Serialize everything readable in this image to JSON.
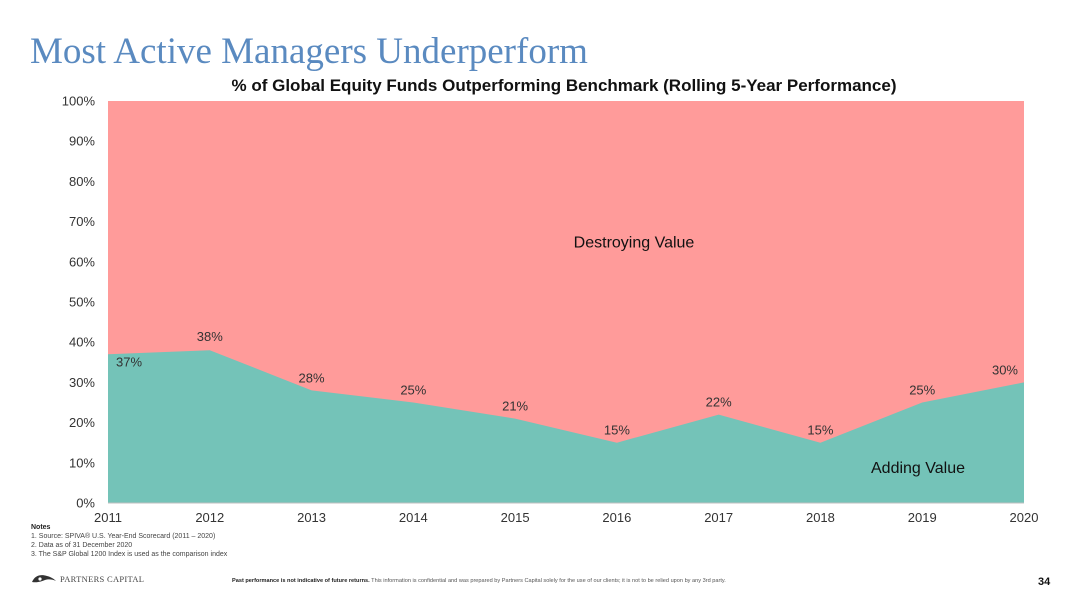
{
  "slide": {
    "title": "Most Active Managers Underperform",
    "page_number": "34"
  },
  "chart_data": {
    "type": "area",
    "title": "% of Global Equity Funds Outperforming Benchmark (Rolling 5-Year Performance)",
    "x": [
      "2011",
      "2012",
      "2013",
      "2014",
      "2015",
      "2016",
      "2017",
      "2018",
      "2019",
      "2020"
    ],
    "series": [
      {
        "values": [
          37,
          38,
          28,
          25,
          21,
          15,
          22,
          15,
          25,
          30
        ],
        "data_labels": [
          "37%",
          "38%",
          "28%",
          "25%",
          "21%",
          "15%",
          "22%",
          "15%",
          "25%",
          "30%"
        ]
      }
    ],
    "ylim": [
      0,
      100
    ],
    "y_ticks": [
      "0%",
      "10%",
      "20%",
      "30%",
      "40%",
      "50%",
      "60%",
      "70%",
      "80%",
      "90%",
      "100%"
    ],
    "grid": false,
    "region_labels": {
      "above": "Destroying Value",
      "below": "Adding Value"
    },
    "colors": {
      "above": "#ff9b9a",
      "below": "#74c3b8"
    }
  },
  "notes": {
    "heading": "Notes",
    "items": [
      "1. Source: SPIVA® U.S. Year-End Scorecard (2011 – 2020)",
      "2. Data as of 31 December 2020",
      "3. The S&P Global 1200 Index is used as the comparison index"
    ]
  },
  "footer": {
    "logo_text": "PARTNERS CAPITAL",
    "logo_icon": "partners-capital-logo-icon",
    "disclaimer_bold": "Past performance is not indicative of future returns.",
    "disclaimer_rest": " This information is confidential and was prepared by Partners Capital solely for the use of our clients; it is not to be relied upon by any 3rd party."
  }
}
